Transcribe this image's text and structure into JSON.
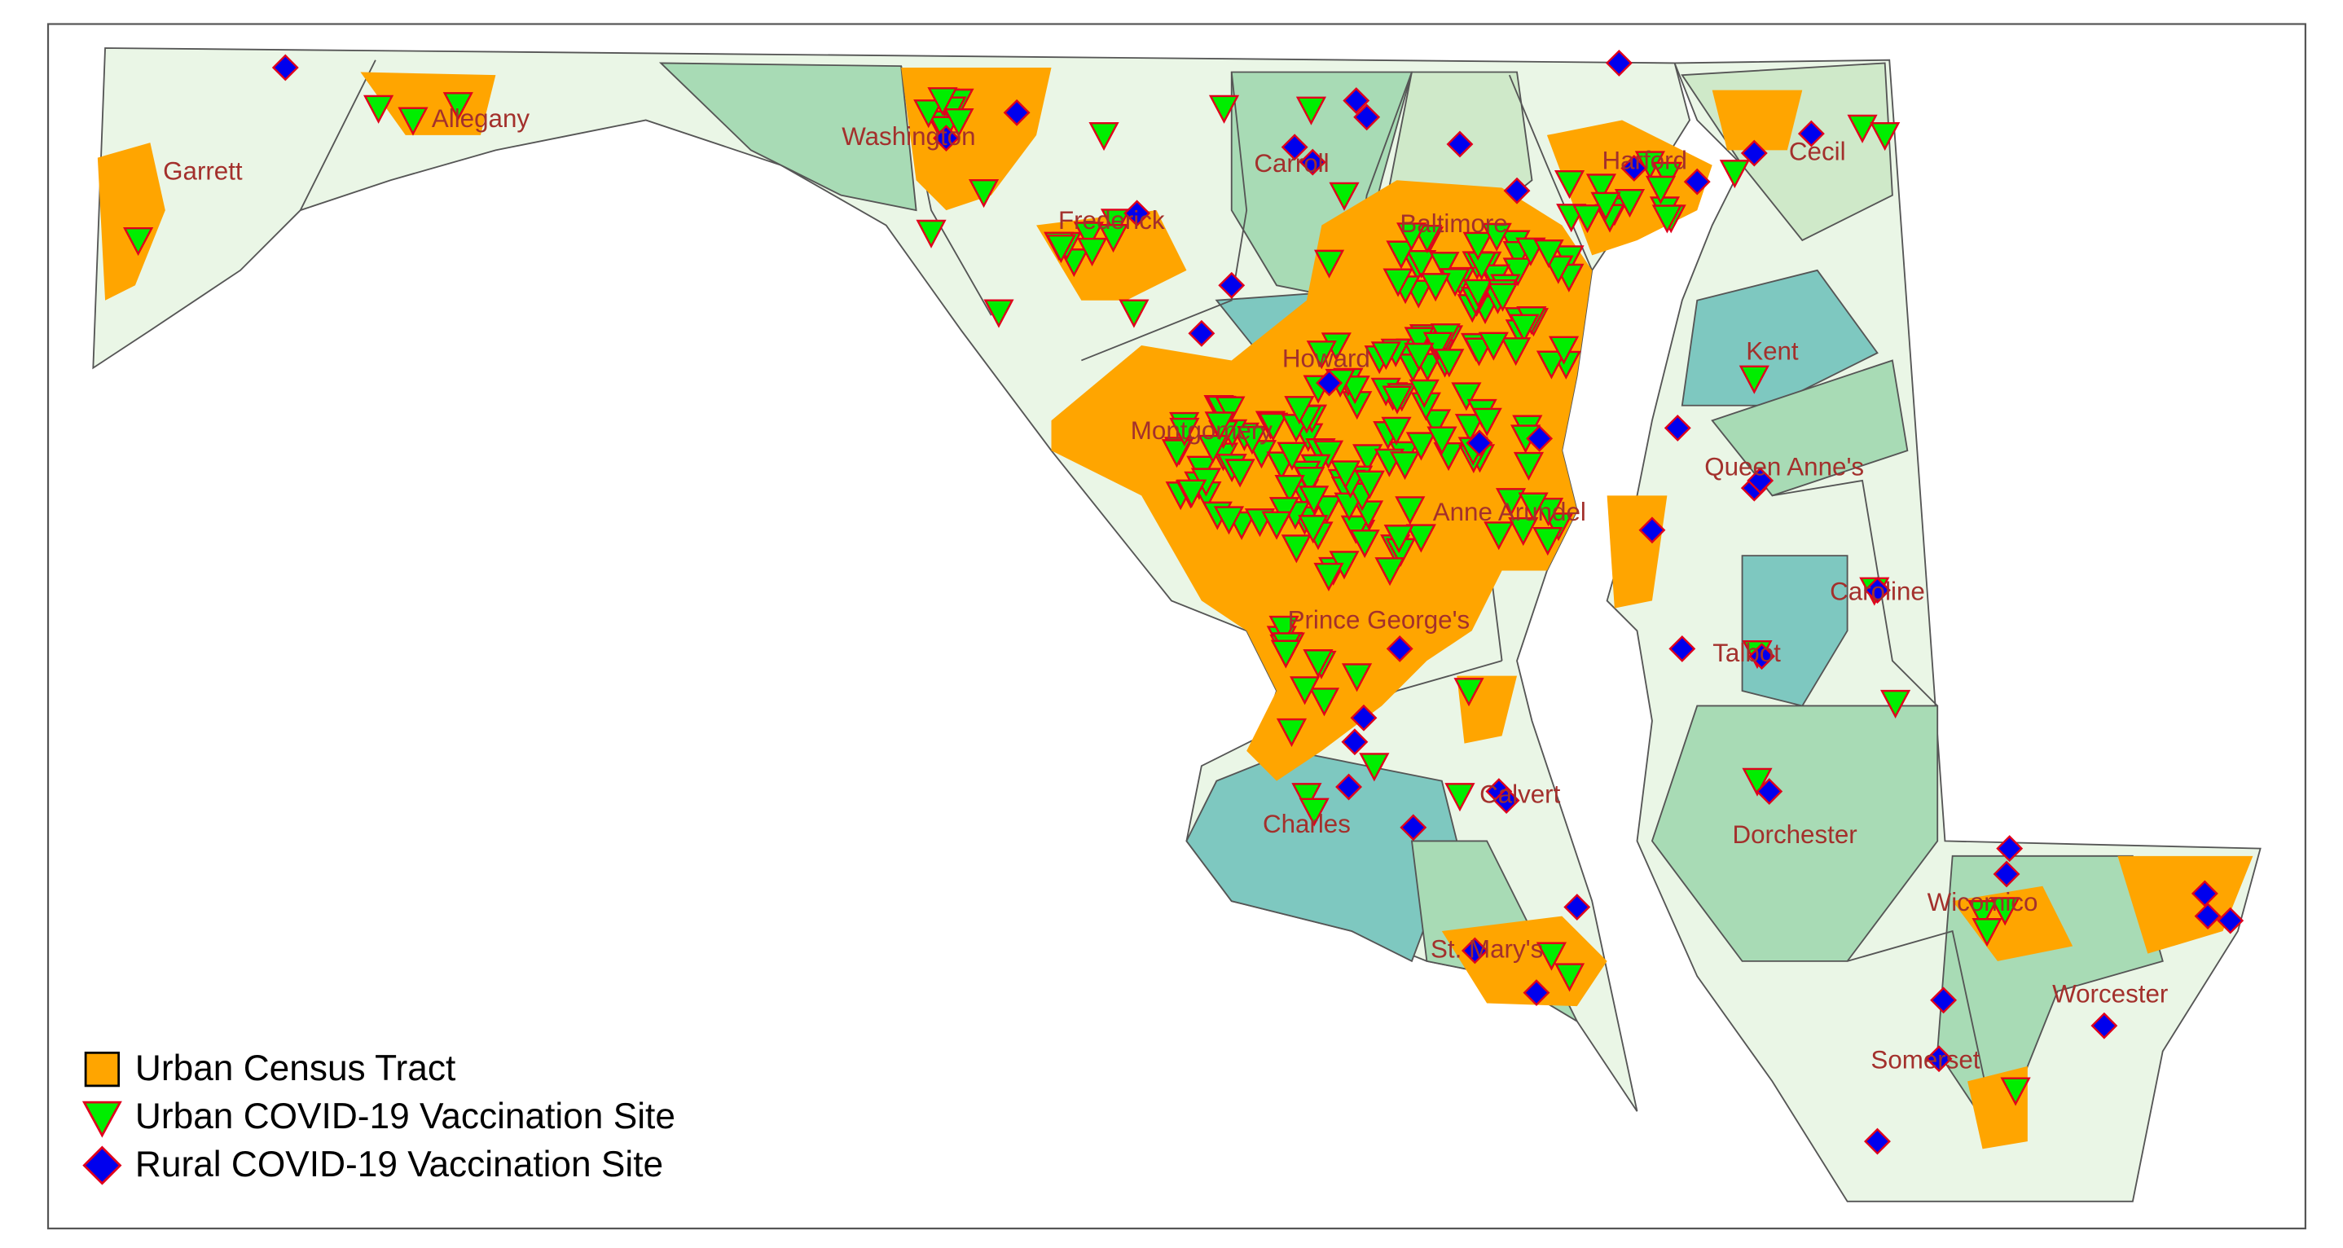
{
  "map": {
    "labels": [
      "Garrett",
      "Allegany",
      "Washington",
      "Frederick",
      "Carroll",
      "Baltimore",
      "Harford",
      "Cecil",
      "Howard",
      "Montgomery",
      "Anne Arundel",
      "Prince George's",
      "Charles",
      "Calvert",
      "St. Mary's",
      "Kent",
      "Queen Anne's",
      "Caroline",
      "Talbot",
      "Dorchester",
      "Wicomico",
      "Worcester",
      "Somerset"
    ],
    "legend": [
      "Urban Census Tract",
      "Urban COVID-19 Vaccination Site",
      "Rural COVID-19 Vaccination Site"
    ]
  }
}
